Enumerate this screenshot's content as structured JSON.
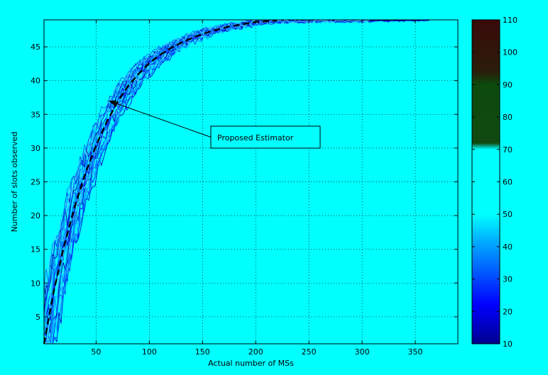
{
  "chart_data": {
    "type": "line",
    "title": "",
    "xlabel": "Actual number of MSs",
    "ylabel": "Number of slots observed",
    "xlim": [
      1,
      390
    ],
    "ylim": [
      1,
      49
    ],
    "xticks": [
      50,
      100,
      150,
      200,
      250,
      300,
      350
    ],
    "yticks": [
      5,
      10,
      15,
      20,
      25,
      30,
      35,
      40,
      45
    ],
    "grid": true,
    "annotation": {
      "text": "Proposed Estimator",
      "arrow_to": {
        "x": 62,
        "y": 37
      }
    },
    "series": [
      {
        "style": "dashed-black",
        "x": [
          1,
          10,
          20,
          30,
          40,
          50,
          60,
          70,
          80,
          90,
          100,
          110,
          120,
          130,
          140,
          150,
          160,
          175,
          190,
          200,
          210,
          220
        ],
        "y": [
          1,
          8.7,
          15.6,
          21.4,
          26.3,
          30.4,
          33.9,
          36.8,
          39.2,
          41.0,
          42.6,
          43.8,
          44.8,
          45.6,
          46.3,
          46.9,
          47.4,
          48.0,
          48.4,
          48.7,
          48.8,
          48.9
        ]
      }
    ],
    "colorbar": {
      "ticks": [
        10,
        20,
        30,
        40,
        50,
        60,
        70,
        80,
        90,
        100,
        110
      ],
      "range": [
        10,
        110
      ],
      "colors": [
        {
          "v": 10,
          "c": "#00008f"
        },
        {
          "v": 22,
          "c": "#0000ff"
        },
        {
          "v": 42,
          "c": "#00b0ff"
        },
        {
          "v": 50,
          "c": "#00ffff"
        },
        {
          "v": 70,
          "c": "#00ffff"
        },
        {
          "v": 72,
          "c": "#104a10"
        },
        {
          "v": 90,
          "c": "#0d4a0d"
        },
        {
          "v": 94,
          "c": "#2a1d0a"
        },
        {
          "v": 110,
          "c": "#3a0a0a"
        }
      ]
    }
  }
}
